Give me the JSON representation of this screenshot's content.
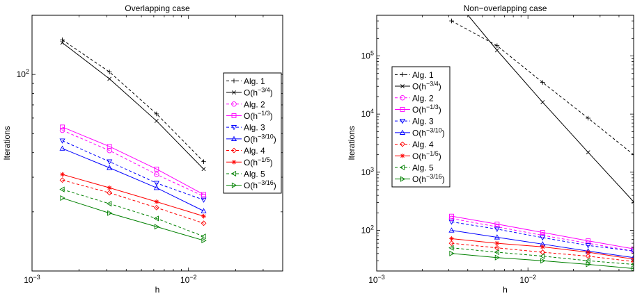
{
  "colors": {
    "black": "#000000",
    "magenta": "#ff00ff",
    "blue": "#0000ff",
    "red": "#ff0000",
    "green": "#008000"
  },
  "chart_data": [
    {
      "type": "line",
      "title": "Overlapping case",
      "xlabel": "h",
      "ylabel": "Iterations",
      "xscale": "log",
      "yscale": "log",
      "xlim": [
        0.001,
        0.04
      ],
      "ylim": [
        10,
        200
      ],
      "xticks": [
        {
          "value": 0.001,
          "base": "10",
          "exp": "−3"
        },
        {
          "value": 0.01,
          "base": "10",
          "exp": "−2"
        }
      ],
      "yticks": [
        {
          "value": 100,
          "base": "10",
          "exp": "2"
        }
      ],
      "legend_position": "right",
      "x": [
        0.0015625,
        0.003125,
        0.00625,
        0.0125
      ],
      "series": [
        {
          "name": "Alg. 1",
          "label": "Alg. 1",
          "color": "#000000",
          "dash": "dashed",
          "marker": "plus",
          "values": [
            150,
            103,
            63,
            36
          ]
        },
        {
          "name": "O(h^{-3/4})",
          "label": {
            "pre": "O(h",
            "exp": "−3/4",
            "post": ")"
          },
          "color": "#000000",
          "dash": "solid",
          "marker": "x",
          "values": [
            145,
            95,
            58,
            33
          ]
        },
        {
          "name": "Alg. 2",
          "label": "Alg. 2",
          "color": "#ff00ff",
          "dash": "dashed",
          "marker": "circle",
          "values": [
            52,
            41,
            31,
            24
          ]
        },
        {
          "name": "O(h^{-1/3})",
          "label": {
            "pre": "O(h",
            "exp": "−1/3",
            "post": ")"
          },
          "color": "#ff00ff",
          "dash": "solid",
          "marker": "square",
          "values": [
            54,
            43,
            33,
            24.5
          ]
        },
        {
          "name": "Alg. 3",
          "label": "Alg. 3",
          "color": "#0000ff",
          "dash": "dashed",
          "marker": "triangle-down",
          "values": [
            46,
            36,
            28,
            23
          ]
        },
        {
          "name": "O(h^{-3/10})",
          "label": {
            "pre": "O(h",
            "exp": "−3/10",
            "post": ")"
          },
          "color": "#0000ff",
          "dash": "solid",
          "marker": "triangle-up",
          "values": [
            42,
            33.5,
            26.5,
            20.2
          ]
        },
        {
          "name": "Alg. 4",
          "label": "Alg. 4",
          "color": "#ff0000",
          "dash": "dashed",
          "marker": "diamond",
          "values": [
            29,
            25,
            21,
            17.5
          ]
        },
        {
          "name": "O(h^{-1/5})",
          "label": {
            "pre": "O(h",
            "exp": "−1/5",
            "post": ")"
          },
          "color": "#ff0000",
          "dash": "solid",
          "marker": "star",
          "values": [
            31,
            26.5,
            22.5,
            19
          ]
        },
        {
          "name": "Alg. 5",
          "label": "Alg. 5",
          "color": "#008000",
          "dash": "dashed",
          "marker": "triangle-left",
          "values": [
            26,
            22,
            18.5,
            15
          ]
        },
        {
          "name": "O(h^{-3/16})",
          "label": {
            "pre": "O(h",
            "exp": "−3/16",
            "post": ")"
          },
          "color": "#008000",
          "dash": "solid",
          "marker": "triangle-right",
          "values": [
            23.5,
            19.7,
            16.8,
            14.3
          ]
        }
      ]
    },
    {
      "type": "line",
      "title": "Non−overlapping case",
      "xlabel": "h",
      "ylabel": "Iterations",
      "xscale": "log",
      "yscale": "log",
      "xlim": [
        0.001,
        0.05
      ],
      "ylim": [
        20,
        500000
      ],
      "xticks": [
        {
          "value": 0.001,
          "base": "10",
          "exp": "−3"
        },
        {
          "value": 0.01,
          "base": "10",
          "exp": "−2"
        }
      ],
      "yticks": [
        {
          "value": 100,
          "base": "10",
          "exp": "2"
        },
        {
          "value": 1000,
          "base": "10",
          "exp": "3"
        },
        {
          "value": 10000,
          "base": "10",
          "exp": "4"
        },
        {
          "value": 100000,
          "base": "10",
          "exp": "5"
        }
      ],
      "legend_position": "left",
      "x": [
        0.003125,
        0.00625,
        0.0125,
        0.025,
        0.05
      ],
      "series": [
        {
          "name": "Alg. 1",
          "label": "Alg. 1",
          "color": "#000000",
          "dash": "dashed",
          "marker": "plus",
          "values": [
            400000,
            150000,
            35000,
            8500,
            2000
          ]
        },
        {
          "name": "O(h^{-3/4})",
          "label": {
            "pre": "O(h",
            "exp": "−3/4",
            "post": ")"
          },
          "color": "#000000",
          "dash": "solid",
          "marker": "x",
          "values": [
            1100000,
            125000,
            16000,
            2200,
            310
          ]
        },
        {
          "name": "Alg. 2",
          "label": "Alg. 2",
          "color": "#ff00ff",
          "dash": "dashed",
          "marker": "circle",
          "values": [
            160,
            115,
            82,
            60,
            44
          ]
        },
        {
          "name": "O(h^{-1/3})",
          "label": {
            "pre": "O(h",
            "exp": "−1/3",
            "post": ")"
          },
          "color": "#ff00ff",
          "dash": "solid",
          "marker": "square",
          "values": [
            175,
            128,
            92,
            66,
            48
          ]
        },
        {
          "name": "Alg. 3",
          "label": "Alg. 3",
          "color": "#0000ff",
          "dash": "dashed",
          "marker": "triangle-down",
          "values": [
            140,
            105,
            75,
            55,
            44
          ]
        },
        {
          "name": "O(h^{-3/10})",
          "label": {
            "pre": "O(h",
            "exp": "−3/10",
            "post": ")"
          },
          "color": "#0000ff",
          "dash": "solid",
          "marker": "triangle-up",
          "values": [
            100,
            76,
            58,
            44,
            34
          ]
        },
        {
          "name": "Alg. 4",
          "label": "Alg. 4",
          "color": "#ff0000",
          "dash": "dashed",
          "marker": "diamond",
          "values": [
            60,
            50,
            42,
            36,
            29
          ]
        },
        {
          "name": "O(h^{-1/5})",
          "label": {
            "pre": "O(h",
            "exp": "−1/5",
            "post": ")"
          },
          "color": "#ff0000",
          "dash": "solid",
          "marker": "star",
          "values": [
            72,
            60,
            52,
            42,
            32
          ]
        },
        {
          "name": "Alg. 5",
          "label": "Alg. 5",
          "color": "#008000",
          "dash": "dashed",
          "marker": "triangle-left",
          "values": [
            50,
            42,
            36,
            30,
            26
          ]
        },
        {
          "name": "O(h^{-3/16})",
          "label": {
            "pre": "O(h",
            "exp": "−3/16",
            "post": ")"
          },
          "color": "#008000",
          "dash": "solid",
          "marker": "triangle-right",
          "values": [
            40,
            34,
            30,
            26,
            22
          ]
        }
      ]
    }
  ]
}
